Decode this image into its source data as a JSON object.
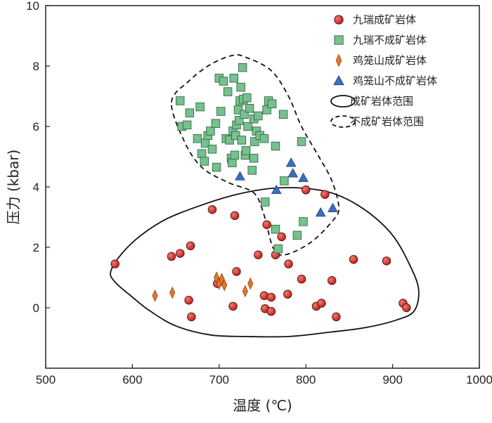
{
  "chart_data": {
    "type": "scatter",
    "xlabel": "温度 (℃)",
    "ylabel": "压力 (kbar)",
    "xlim": [
      500,
      1000
    ],
    "ylim": [
      -2,
      10
    ],
    "xticks": [
      500,
      600,
      700,
      800,
      900,
      1000
    ],
    "yticks": [
      0,
      2,
      4,
      6,
      8,
      10
    ],
    "grid": false,
    "legend_position": "top-right",
    "series": [
      {
        "name": "九瑞成矿岩体",
        "marker": "circle",
        "color": "#d62f2a",
        "points": [
          [
            580,
            1.45
          ],
          [
            645,
            1.7
          ],
          [
            655,
            1.8
          ],
          [
            667,
            2.05
          ],
          [
            692,
            3.25
          ],
          [
            718,
            3.05
          ],
          [
            720,
            1.2
          ],
          [
            698,
            0.8
          ],
          [
            665,
            0.25
          ],
          [
            668,
            -0.3
          ],
          [
            716,
            0.05
          ],
          [
            745,
            1.75
          ],
          [
            755,
            2.75
          ],
          [
            765,
            1.75
          ],
          [
            772,
            2.35
          ],
          [
            780,
            1.45
          ],
          [
            752,
            0.4
          ],
          [
            760,
            0.35
          ],
          [
            753,
            -0.03
          ],
          [
            760,
            -0.12
          ],
          [
            779,
            0.45
          ],
          [
            795,
            0.95
          ],
          [
            800,
            3.9
          ],
          [
            822,
            3.75
          ],
          [
            812,
            0.05
          ],
          [
            818,
            0.15
          ],
          [
            830,
            0.9
          ],
          [
            835,
            -0.3
          ],
          [
            855,
            1.6
          ],
          [
            893,
            1.55
          ],
          [
            912,
            0.15
          ],
          [
            916,
            0.0
          ]
        ]
      },
      {
        "name": "九瑞不成矿岩体",
        "marker": "square",
        "color": "#78c08e",
        "points": [
          [
            655,
            6.85
          ],
          [
            657,
            6.0
          ],
          [
            663,
            6.05
          ],
          [
            666,
            6.45
          ],
          [
            675,
            5.6
          ],
          [
            678,
            6.65
          ],
          [
            680,
            5.1
          ],
          [
            683,
            4.85
          ],
          [
            684,
            5.45
          ],
          [
            687,
            5.7
          ],
          [
            690,
            5.85
          ],
          [
            692,
            5.25
          ],
          [
            696,
            6.1
          ],
          [
            697,
            4.65
          ],
          [
            700,
            7.6
          ],
          [
            702,
            6.5
          ],
          [
            705,
            7.5
          ],
          [
            708,
            5.6
          ],
          [
            710,
            7.15
          ],
          [
            712,
            5.55
          ],
          [
            714,
            4.95
          ],
          [
            715,
            4.8
          ],
          [
            716,
            5.85
          ],
          [
            717,
            7.6
          ],
          [
            718,
            5.05
          ],
          [
            719,
            5.7
          ],
          [
            720,
            6.05
          ],
          [
            722,
            6.55
          ],
          [
            723,
            6.2
          ],
          [
            724,
            6.85
          ],
          [
            725,
            7.3
          ],
          [
            726,
            5.55
          ],
          [
            727,
            7.95
          ],
          [
            728,
            6.9
          ],
          [
            729,
            6.4
          ],
          [
            730,
            5.05
          ],
          [
            731,
            5.2
          ],
          [
            732,
            6.95
          ],
          [
            733,
            6.0
          ],
          [
            735,
            6.6
          ],
          [
            738,
            4.55
          ],
          [
            740,
            6.25
          ],
          [
            741,
            5.5
          ],
          [
            743,
            5.85
          ],
          [
            745,
            6.35
          ],
          [
            747,
            5.7
          ],
          [
            752,
            5.6
          ],
          [
            755,
            6.55
          ],
          [
            757,
            6.85
          ],
          [
            761,
            6.75
          ],
          [
            765,
            5.35
          ],
          [
            774,
            6.4
          ],
          [
            775,
            4.2
          ],
          [
            795,
            5.5
          ],
          [
            753,
            3.5
          ],
          [
            765,
            2.6
          ],
          [
            768,
            1.95
          ],
          [
            790,
            2.4
          ],
          [
            797,
            2.85
          ],
          [
            740,
            4.95
          ]
        ]
      },
      {
        "name": "鸡笼山成矿岩体",
        "marker": "diamond",
        "color": "#e5782a",
        "points": [
          [
            626,
            0.4
          ],
          [
            646,
            0.5
          ],
          [
            697,
            1.0
          ],
          [
            700,
            0.8
          ],
          [
            703,
            0.95
          ],
          [
            706,
            0.75
          ],
          [
            730,
            0.55
          ],
          [
            736,
            0.8
          ]
        ]
      },
      {
        "name": "鸡笼山不成矿岩体",
        "marker": "triangle",
        "color": "#3a6fbe",
        "points": [
          [
            724,
            4.35
          ],
          [
            766,
            3.9
          ],
          [
            783,
            4.8
          ],
          [
            785,
            4.45
          ],
          [
            797,
            4.3
          ],
          [
            817,
            3.15
          ],
          [
            831,
            3.3
          ]
        ]
      }
    ],
    "regions": [
      {
        "name": "成矿岩体范围",
        "style": "solid",
        "outline": [
          [
            575,
            1.2
          ],
          [
            588,
            1.8
          ],
          [
            610,
            2.4
          ],
          [
            640,
            2.95
          ],
          [
            680,
            3.4
          ],
          [
            720,
            3.75
          ],
          [
            760,
            3.95
          ],
          [
            800,
            3.95
          ],
          [
            835,
            3.75
          ],
          [
            870,
            3.2
          ],
          [
            900,
            2.4
          ],
          [
            920,
            1.4
          ],
          [
            930,
            0.6
          ],
          [
            925,
            -0.1
          ],
          [
            905,
            -0.4
          ],
          [
            870,
            -0.65
          ],
          [
            830,
            -0.8
          ],
          [
            780,
            -0.95
          ],
          [
            730,
            -0.95
          ],
          [
            690,
            -0.9
          ],
          [
            650,
            -0.6
          ],
          [
            620,
            -0.1
          ],
          [
            600,
            0.35
          ],
          [
            580,
            0.85
          ]
        ]
      },
      {
        "name": "不成矿岩体范围",
        "style": "dashed",
        "outline": [
          [
            645,
            6.8
          ],
          [
            665,
            7.5
          ],
          [
            690,
            8.05
          ],
          [
            715,
            8.35
          ],
          [
            730,
            8.3
          ],
          [
            760,
            7.85
          ],
          [
            780,
            7.0
          ],
          [
            795,
            6.0
          ],
          [
            815,
            5.0
          ],
          [
            830,
            4.2
          ],
          [
            838,
            3.3
          ],
          [
            830,
            2.85
          ],
          [
            805,
            2.15
          ],
          [
            775,
            1.75
          ],
          [
            762,
            2.0
          ],
          [
            752,
            3.05
          ],
          [
            740,
            3.8
          ],
          [
            710,
            4.15
          ],
          [
            680,
            4.65
          ],
          [
            660,
            5.5
          ]
        ]
      }
    ]
  }
}
